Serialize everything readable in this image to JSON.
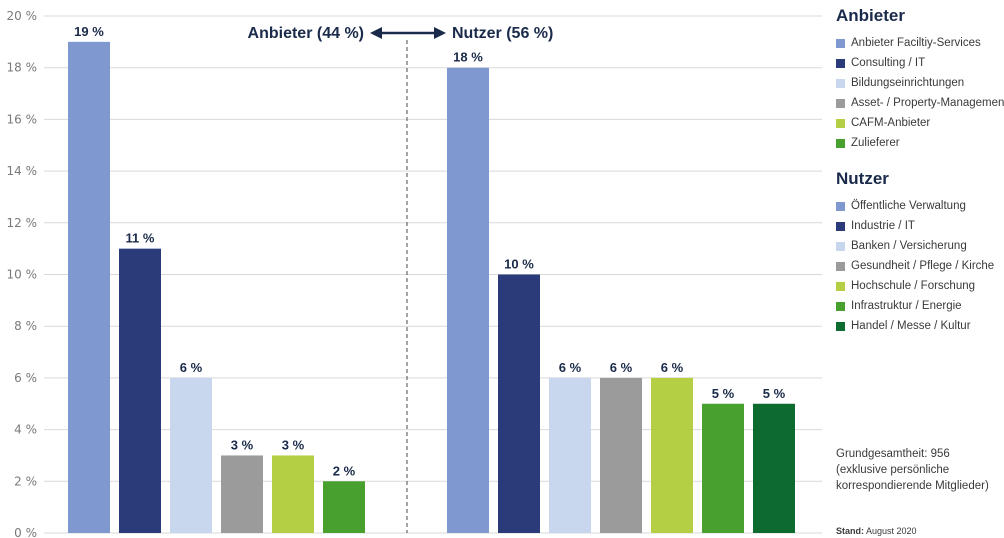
{
  "chart_data": {
    "type": "bar",
    "ylim": [
      0,
      20
    ],
    "y_ticks": [
      "0 %",
      "2 %",
      "4 %",
      "6 %",
      "8 %",
      "10 %",
      "12 %",
      "14 %",
      "16 %",
      "18 %",
      "20 %"
    ],
    "grid": true,
    "divider_label_left": "Anbieter (44 %)",
    "divider_label_right": "Nutzer (56 %)",
    "groups": [
      {
        "name": "Anbieter",
        "bars": [
          {
            "category": "Anbieter Faciltiy-Services",
            "value": 19,
            "label": "19 %",
            "color": "#7f98cf"
          },
          {
            "category": "Consulting / IT",
            "value": 11,
            "label": "11 %",
            "color": "#2b3a78"
          },
          {
            "category": "Bildungseinrichtungen",
            "value": 6,
            "label": "6 %",
            "color": "#c8d6ee"
          },
          {
            "category": "Asset- / Property-Management",
            "value": 3,
            "label": "3 %",
            "color": "#9b9b9b"
          },
          {
            "category": "CAFM-Anbieter",
            "value": 3,
            "label": "3 %",
            "color": "#b4cf44"
          },
          {
            "category": "Zulieferer",
            "value": 2,
            "label": "2 %",
            "color": "#48a02f"
          }
        ]
      },
      {
        "name": "Nutzer",
        "bars": [
          {
            "category": "Öffentliche Verwaltung",
            "value": 18,
            "label": "18 %",
            "color": "#7f98cf"
          },
          {
            "category": "Industrie / IT",
            "value": 10,
            "label": "10 %",
            "color": "#2b3a78"
          },
          {
            "category": "Banken / Versicherung",
            "value": 6,
            "label": "6 %",
            "color": "#c8d6ee"
          },
          {
            "category": "Gesundheit / Pflege / Kirche",
            "value": 6,
            "label": "6 %",
            "color": "#9b9b9b"
          },
          {
            "category": "Hochschule / Forschung",
            "value": 6,
            "label": "6 %",
            "color": "#b4cf44"
          },
          {
            "category": "Infrastruktur / Energie",
            "value": 5,
            "label": "5 %",
            "color": "#48a02f"
          },
          {
            "category": "Handel / Messe / Kultur",
            "value": 5,
            "label": "5 %",
            "color": "#0e6b2f"
          }
        ]
      }
    ]
  },
  "notes": {
    "line1": "Grundgesamtheit: 956",
    "line2": "(exklusive persönliche",
    "line3": "korrespondierende Mitglieder)"
  },
  "stand": {
    "label": "Stand:",
    "value": "August 2020"
  }
}
